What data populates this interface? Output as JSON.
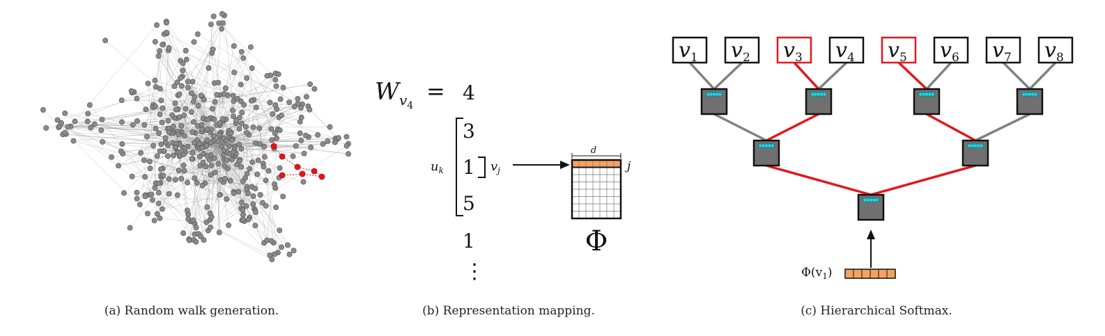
{
  "panel_a": {
    "caption": "(a) Random walk generation."
  },
  "panel_b": {
    "caption": "(b) Representation mapping.",
    "walk_label_main": "W",
    "walk_label_sub": "v",
    "walk_label_subsub": "4",
    "equals": "=",
    "walk": [
      "4",
      "3",
      "1",
      "5",
      "1"
    ],
    "ellipsis": "⋮",
    "window_label_main": "u",
    "window_label_sub": "k",
    "center_label_main": "v",
    "center_label_sub": "j",
    "matrix_width_label": "d",
    "matrix_row_label": "j",
    "matrix_symbol": "Φ",
    "colors": {
      "highlight_row": "#f4a261"
    }
  },
  "panel_c": {
    "caption": "(c) Hierarchical Softmax.",
    "leaves": [
      {
        "main": "v",
        "sub": "1",
        "highlight": false
      },
      {
        "main": "v",
        "sub": "2",
        "highlight": false
      },
      {
        "main": "v",
        "sub": "3",
        "highlight": true
      },
      {
        "main": "v",
        "sub": "4",
        "highlight": false
      },
      {
        "main": "v",
        "sub": "5",
        "highlight": true
      },
      {
        "main": "v",
        "sub": "6",
        "highlight": false
      },
      {
        "main": "v",
        "sub": "7",
        "highlight": false
      },
      {
        "main": "v",
        "sub": "8",
        "highlight": false
      }
    ],
    "input_label_main": "Φ(v",
    "input_label_sub": "1",
    "input_label_close": ")",
    "colors": {
      "path": "#e8141b",
      "edge": "#808080",
      "node_fill": "#707070",
      "node_bar": "#22d8e6",
      "vector": "#f4a261"
    }
  }
}
